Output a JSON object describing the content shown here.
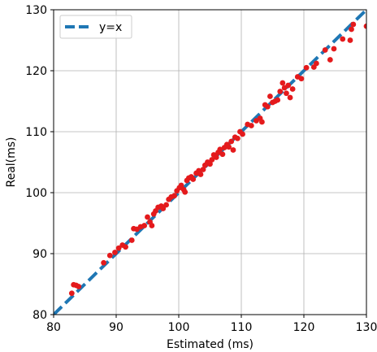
{
  "chart_data": {
    "type": "scatter",
    "xlabel": "Estimated (ms)",
    "ylabel": "Real(ms)",
    "xlim": [
      80,
      130
    ],
    "ylim": [
      80,
      130
    ],
    "xticks": [
      "80",
      "90",
      "100",
      "110",
      "120",
      "130"
    ],
    "yticks": [
      "80",
      "90",
      "100",
      "110",
      "120",
      "130"
    ],
    "grid": true,
    "legend": {
      "placement": "top-left",
      "entries": [
        "y=x"
      ]
    },
    "reference_line": {
      "label": "y=x",
      "color": "#1f77b4",
      "style": "dashed",
      "from": [
        80,
        80
      ],
      "to": [
        130,
        130
      ]
    },
    "series": [
      {
        "color": "#e41a1c",
        "points": [
          [
            82.9,
            83.5
          ],
          [
            83.2,
            84.9
          ],
          [
            83.6,
            84.8
          ],
          [
            84.0,
            84.6
          ],
          [
            88.0,
            88.5
          ],
          [
            89.0,
            89.7
          ],
          [
            89.8,
            90.2
          ],
          [
            90.4,
            90.9
          ],
          [
            91.0,
            91.4
          ],
          [
            91.5,
            91.1
          ],
          [
            92.5,
            92.2
          ],
          [
            92.8,
            94.1
          ],
          [
            93.3,
            94.0
          ],
          [
            93.9,
            94.4
          ],
          [
            94.5,
            94.6
          ],
          [
            95.0,
            96.0
          ],
          [
            95.4,
            95.2
          ],
          [
            95.7,
            94.6
          ],
          [
            96.0,
            96.5
          ],
          [
            96.3,
            97.0
          ],
          [
            96.7,
            97.6
          ],
          [
            97.2,
            97.8
          ],
          [
            97.5,
            97.4
          ],
          [
            98.0,
            98.0
          ],
          [
            98.4,
            98.9
          ],
          [
            98.8,
            99.3
          ],
          [
            99.3,
            99.5
          ],
          [
            99.7,
            100.3
          ],
          [
            100.1,
            100.8
          ],
          [
            100.4,
            101.2
          ],
          [
            100.8,
            100.5
          ],
          [
            101.0,
            100.1
          ],
          [
            101.3,
            102.0
          ],
          [
            101.6,
            102.4
          ],
          [
            102.0,
            102.6
          ],
          [
            102.3,
            102.2
          ],
          [
            102.8,
            103.2
          ],
          [
            103.2,
            103.6
          ],
          [
            103.5,
            103.0
          ],
          [
            103.9,
            103.8
          ],
          [
            104.2,
            104.5
          ],
          [
            104.6,
            105.0
          ],
          [
            105.0,
            104.7
          ],
          [
            105.3,
            105.4
          ],
          [
            105.6,
            106.2
          ],
          [
            106.0,
            105.8
          ],
          [
            106.3,
            106.6
          ],
          [
            106.6,
            107.1
          ],
          [
            107.0,
            106.3
          ],
          [
            107.3,
            107.4
          ],
          [
            107.7,
            107.9
          ],
          [
            108.0,
            107.5
          ],
          [
            108.4,
            108.4
          ],
          [
            108.7,
            107.0
          ],
          [
            109.0,
            109.1
          ],
          [
            109.4,
            108.9
          ],
          [
            109.8,
            110.0
          ],
          [
            110.2,
            109.6
          ],
          [
            111.0,
            111.2
          ],
          [
            111.6,
            111.0
          ],
          [
            112.4,
            111.8
          ],
          [
            113.0,
            112.2
          ],
          [
            113.3,
            111.6
          ],
          [
            113.8,
            114.4
          ],
          [
            114.2,
            114.1
          ],
          [
            114.6,
            115.8
          ],
          [
            115.0,
            114.8
          ],
          [
            115.4,
            115.0
          ],
          [
            115.8,
            115.2
          ],
          [
            116.2,
            116.6
          ],
          [
            116.6,
            118.0
          ],
          [
            116.9,
            117.2
          ],
          [
            117.2,
            116.3
          ],
          [
            117.5,
            117.6
          ],
          [
            117.8,
            115.6
          ],
          [
            118.2,
            117.0
          ],
          [
            119.0,
            119.0
          ],
          [
            119.6,
            118.7
          ],
          [
            120.4,
            120.5
          ],
          [
            121.6,
            120.6
          ],
          [
            122.0,
            121.2
          ],
          [
            123.4,
            123.4
          ],
          [
            124.2,
            121.8
          ],
          [
            124.8,
            123.6
          ],
          [
            126.2,
            125.2
          ],
          [
            127.4,
            125.0
          ],
          [
            127.6,
            126.8
          ],
          [
            127.9,
            127.6
          ],
          [
            130.0,
            127.3
          ]
        ]
      }
    ]
  }
}
